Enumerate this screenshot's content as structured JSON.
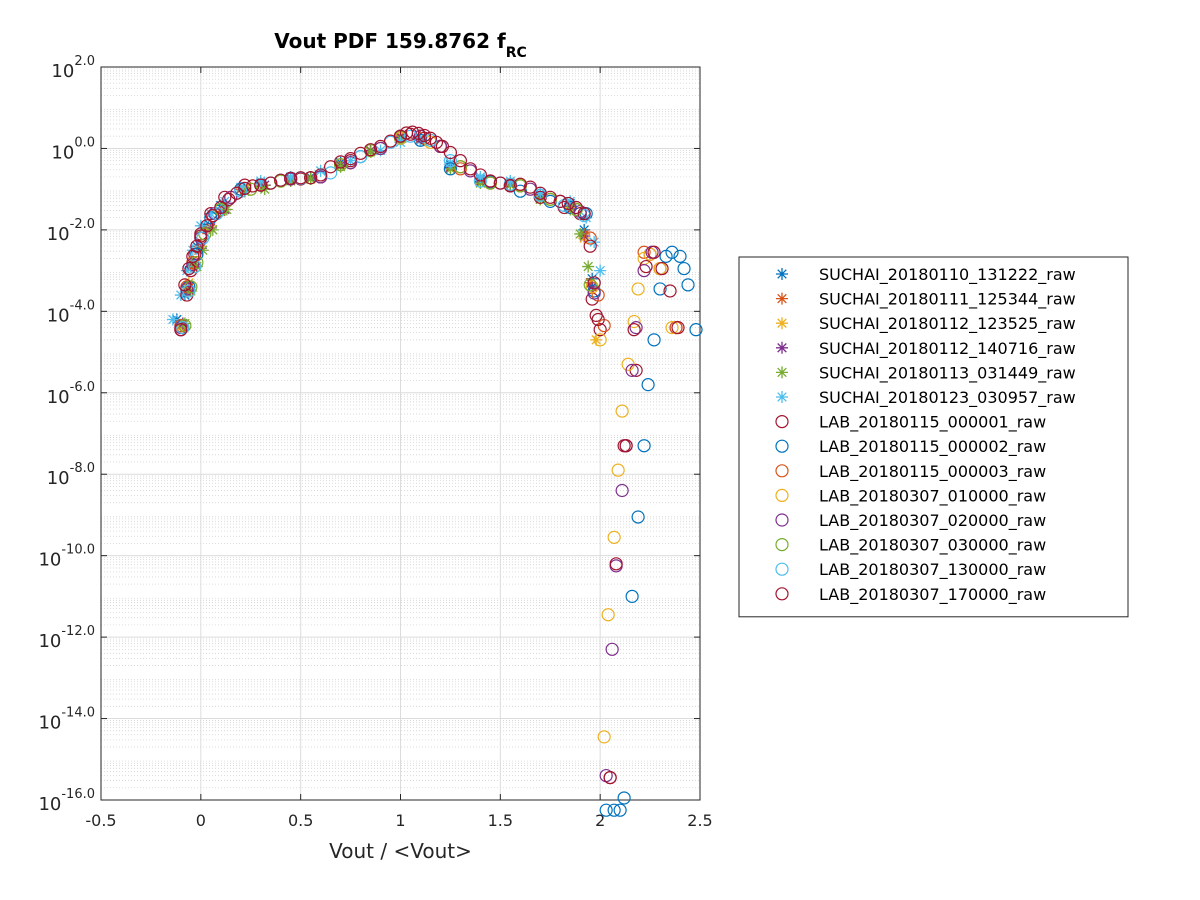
{
  "chart_data": {
    "type": "scatter",
    "title": "Vout PDF 159.8762 f",
    "title_subscript": "RC",
    "xlabel": "Vout / <Vout>",
    "ylabel": "",
    "xlim": [
      -0.5,
      2.5
    ],
    "ylim_log10": [
      -16,
      2
    ],
    "y_scale": "log",
    "grid": true,
    "minor_grid": true,
    "legend_placement": "outside-right",
    "x_ticks": [
      {
        "v": -0.5,
        "label": "-0.5"
      },
      {
        "v": 0,
        "label": "0"
      },
      {
        "v": 0.5,
        "label": "0.5"
      },
      {
        "v": 1,
        "label": "1"
      },
      {
        "v": 1.5,
        "label": "1.5"
      },
      {
        "v": 2,
        "label": "2"
      },
      {
        "v": 2.5,
        "label": "2.5"
      }
    ],
    "y_ticks": [
      {
        "exp": 2,
        "base": "10",
        "power": "2.0"
      },
      {
        "exp": 0,
        "base": "10",
        "power": "0.0"
      },
      {
        "exp": -2,
        "base": "10",
        "power": "-2.0"
      },
      {
        "exp": -4,
        "base": "10",
        "power": "-4.0"
      },
      {
        "exp": -6,
        "base": "10",
        "power": "-6.0"
      },
      {
        "exp": -8,
        "base": "10",
        "power": "-8.0"
      },
      {
        "exp": -10,
        "base": "10",
        "power": "-10.0"
      },
      {
        "exp": -12,
        "base": "10",
        "power": "-12.0"
      },
      {
        "exp": -14,
        "base": "10",
        "power": "-14.0"
      },
      {
        "exp": -16,
        "base": "10",
        "power": "-16.0"
      }
    ],
    "series": [
      {
        "name": "SUCHAI_20180110_131222_raw",
        "marker": "star",
        "color": "#0072BD",
        "x": [
          -0.12,
          -0.08,
          -0.05,
          -0.02,
          0.02,
          0.1,
          0.2,
          0.3,
          0.45,
          0.55,
          0.7,
          0.85,
          1.0,
          1.1,
          1.25,
          1.4,
          1.55,
          1.7,
          1.85,
          1.92,
          1.96
        ],
        "log10y": [
          -4.2,
          -3.6,
          -2.9,
          -2.4,
          -1.9,
          -1.4,
          -1.0,
          -0.85,
          -0.75,
          -0.7,
          -0.35,
          -0.05,
          0.25,
          0.2,
          -0.4,
          -0.75,
          -0.9,
          -1.15,
          -1.35,
          -2.0,
          -3.2
        ]
      },
      {
        "name": "SUCHAI_20180111_125344_raw",
        "marker": "star",
        "color": "#D95319",
        "x": [
          -0.1,
          -0.07,
          -0.04,
          -0.01,
          0.03,
          0.1,
          0.2,
          0.3,
          0.45,
          0.55,
          0.7,
          0.85,
          1.0,
          1.1,
          1.25,
          1.4,
          1.55,
          1.7,
          1.85,
          1.92,
          1.95
        ],
        "log10y": [
          -4.35,
          -3.4,
          -2.9,
          -2.5,
          -2.0,
          -1.55,
          -1.0,
          -0.9,
          -0.75,
          -0.75,
          -0.4,
          -0.05,
          0.3,
          0.25,
          -0.45,
          -0.8,
          -0.85,
          -1.2,
          -1.4,
          -2.1,
          -3.3
        ]
      },
      {
        "name": "SUCHAI_20180112_123525_raw",
        "marker": "star",
        "color": "#EDB120",
        "x": [
          -0.1,
          -0.06,
          -0.03,
          0.0,
          0.05,
          0.12,
          0.22,
          0.32,
          0.45,
          0.55,
          0.7,
          0.85,
          1.0,
          1.12,
          1.25,
          1.4,
          1.55,
          1.7,
          1.85,
          1.92,
          1.98
        ],
        "log10y": [
          -4.4,
          -3.3,
          -2.8,
          -2.4,
          -1.9,
          -1.5,
          -1.0,
          -0.9,
          -0.78,
          -0.72,
          -0.4,
          -0.08,
          0.25,
          0.2,
          -0.5,
          -0.85,
          -0.9,
          -1.25,
          -1.45,
          -2.2,
          -4.7
        ]
      },
      {
        "name": "SUCHAI_20180112_140716_raw",
        "marker": "star",
        "color": "#7E2F8E",
        "x": [
          -0.09,
          -0.06,
          -0.03,
          0.0,
          0.05,
          0.12,
          0.22,
          0.32,
          0.45,
          0.55,
          0.7,
          0.85,
          1.0,
          1.1,
          1.25,
          1.4,
          1.55,
          1.7,
          1.85,
          1.92,
          1.96
        ],
        "log10y": [
          -4.3,
          -3.4,
          -2.85,
          -2.45,
          -1.95,
          -1.5,
          -1.05,
          -0.9,
          -0.77,
          -0.73,
          -0.42,
          -0.06,
          0.27,
          0.22,
          -0.47,
          -0.82,
          -0.88,
          -1.22,
          -1.42,
          -2.15,
          -3.4
        ]
      },
      {
        "name": "SUCHAI_20180113_031449_raw",
        "marker": "star",
        "color": "#77AC30",
        "x": [
          -0.08,
          -0.05,
          -0.02,
          0.01,
          0.06,
          0.13,
          0.22,
          0.32,
          0.45,
          0.55,
          0.7,
          0.85,
          1.0,
          1.1,
          1.25,
          1.4,
          1.55,
          1.7,
          1.85,
          1.9,
          1.94
        ],
        "log10y": [
          -4.3,
          -3.5,
          -2.9,
          -2.5,
          -2.0,
          -1.5,
          -1.05,
          -1.0,
          -0.8,
          -0.75,
          -0.45,
          -0.08,
          0.24,
          0.2,
          -0.5,
          -0.85,
          -0.9,
          -1.25,
          -1.5,
          -2.1,
          -2.9
        ]
      },
      {
        "name": "SUCHAI_20180123_030957_raw",
        "marker": "star",
        "color": "#4DBEEE",
        "x": [
          -0.14,
          -0.1,
          -0.07,
          -0.04,
          0.0,
          0.05,
          0.12,
          0.2,
          0.3,
          0.45,
          0.6,
          0.75,
          0.9,
          1.0,
          1.1,
          1.25,
          1.4,
          1.55,
          1.7,
          1.85,
          1.93,
          1.97,
          2.0
        ],
        "log10y": [
          -4.2,
          -3.6,
          -3.0,
          -2.5,
          -1.9,
          -1.6,
          -1.3,
          -0.95,
          -0.8,
          -0.7,
          -0.55,
          -0.3,
          -0.05,
          0.15,
          0.2,
          -0.35,
          -0.7,
          -0.8,
          -1.1,
          -1.3,
          -1.7,
          -2.3,
          -3.0
        ]
      },
      {
        "name": "LAB_20180115_000001_raw",
        "marker": "circle",
        "color": "#A2142F",
        "x": [
          -0.1,
          -0.07,
          -0.05,
          -0.03,
          0.0,
          0.05,
          0.12,
          0.22,
          0.35,
          0.5,
          0.6,
          0.75,
          0.9,
          1.0,
          1.05,
          1.12,
          1.2,
          1.3,
          1.45,
          1.55,
          1.7,
          1.82,
          1.9,
          1.96,
          1.98,
          2.0,
          2.05,
          2.12,
          2.18,
          2.25,
          2.3,
          2.38
        ],
        "log10y": [
          -4.45,
          -3.6,
          -3.0,
          -2.6,
          -2.1,
          -1.6,
          -1.2,
          -0.9,
          -0.85,
          -0.75,
          -0.7,
          -0.3,
          0.0,
          0.3,
          0.35,
          0.25,
          0.05,
          -0.45,
          -0.8,
          -0.9,
          -1.2,
          -1.45,
          -1.6,
          -3.7,
          -4.1,
          -4.45,
          -15.45,
          -7.3,
          -5.45,
          -2.6,
          -2.95,
          -4.4
        ]
      },
      {
        "name": "LAB_20180115_000002_raw",
        "marker": "circle",
        "color": "#0072BD",
        "x": [
          -0.09,
          -0.06,
          -0.02,
          0.05,
          0.2,
          0.4,
          0.6,
          0.8,
          1.0,
          1.1,
          1.25,
          1.45,
          1.6,
          1.75,
          1.85,
          1.93,
          1.97,
          2.03,
          2.07,
          2.1,
          2.12,
          2.16,
          2.19,
          2.22,
          2.24,
          2.27,
          2.3,
          2.33,
          2.36,
          2.4,
          2.42,
          2.44,
          2.48
        ],
        "log10y": [
          -4.4,
          -3.4,
          -2.6,
          -1.7,
          -1.0,
          -0.78,
          -0.7,
          -0.2,
          0.25,
          0.2,
          -0.5,
          -0.82,
          -1.05,
          -1.3,
          -1.45,
          -1.6,
          -3.5,
          -16.25,
          -16.25,
          -16.25,
          -15.95,
          -11.0,
          -9.05,
          -7.3,
          -5.8,
          -4.7,
          -3.45,
          -2.65,
          -2.55,
          -2.65,
          -2.95,
          -3.35,
          -4.45
        ]
      },
      {
        "name": "LAB_20180115_000003_raw",
        "marker": "circle",
        "color": "#D95319",
        "x": [
          -0.1,
          -0.07,
          -0.04,
          0.0,
          0.06,
          0.15,
          0.3,
          0.45,
          0.6,
          0.75,
          0.9,
          1.0,
          1.1,
          1.2,
          1.3,
          1.45,
          1.6,
          1.75,
          1.88,
          1.95,
          1.99,
          2.02,
          2.22,
          2.3,
          2.38
        ],
        "log10y": [
          -4.35,
          -3.4,
          -2.8,
          -2.2,
          -1.65,
          -1.2,
          -0.9,
          -0.75,
          -0.7,
          -0.35,
          0.0,
          0.3,
          0.3,
          0.05,
          -0.5,
          -0.85,
          -0.9,
          -1.25,
          -1.5,
          -2.2,
          -3.6,
          -4.35,
          -2.55,
          -2.95,
          -4.4
        ]
      },
      {
        "name": "LAB_20180307_010000_raw",
        "marker": "circle",
        "color": "#EDB120",
        "x": [
          -0.09,
          -0.06,
          -0.03,
          0.02,
          0.1,
          0.25,
          0.4,
          0.55,
          0.7,
          0.85,
          1.0,
          1.15,
          1.3,
          1.45,
          1.6,
          1.75,
          1.88,
          1.96,
          2.0,
          2.02,
          2.04,
          2.07,
          2.09,
          2.11,
          2.14,
          2.17,
          2.19,
          2.22,
          2.25,
          2.3,
          2.36
        ],
        "log10y": [
          -4.4,
          -3.5,
          -2.9,
          -2.1,
          -1.5,
          -1.0,
          -0.8,
          -0.72,
          -0.4,
          -0.05,
          0.25,
          0.15,
          -0.45,
          -0.85,
          -0.9,
          -1.25,
          -1.5,
          -3.4,
          -4.7,
          -14.45,
          -11.45,
          -9.55,
          -7.9,
          -6.45,
          -5.3,
          -4.25,
          -3.45,
          -2.7,
          -2.6,
          -2.95,
          -4.4
        ]
      },
      {
        "name": "LAB_20180307_020000_raw",
        "marker": "circle",
        "color": "#7E2F8E",
        "x": [
          -0.1,
          -0.07,
          -0.04,
          0.0,
          0.07,
          0.15,
          0.3,
          0.45,
          0.6,
          0.75,
          0.9,
          1.0,
          1.1,
          1.2,
          1.35,
          1.5,
          1.65,
          1.8,
          1.9,
          1.97,
          2.03,
          2.06,
          2.08,
          2.11,
          2.13,
          2.16,
          2.18,
          2.22,
          2.26
        ],
        "log10y": [
          -4.4,
          -3.45,
          -2.85,
          -2.2,
          -1.6,
          -1.2,
          -0.9,
          -0.75,
          -0.7,
          -0.35,
          0.0,
          0.3,
          0.3,
          0.05,
          -0.55,
          -0.85,
          -1.0,
          -1.3,
          -1.55,
          -3.55,
          -15.4,
          -12.3,
          -10.25,
          -8.4,
          -7.3,
          -5.45,
          -4.4,
          -3.0,
          -2.55
        ]
      },
      {
        "name": "LAB_20180307_030000_raw",
        "marker": "circle",
        "color": "#77AC30",
        "x": [
          -0.08,
          -0.05,
          -0.02,
          0.02,
          0.1,
          0.25,
          0.4,
          0.55,
          0.7,
          0.85,
          1.0,
          1.15,
          1.3,
          1.45,
          1.6,
          1.75,
          1.88,
          1.95
        ],
        "log10y": [
          -4.35,
          -3.4,
          -2.8,
          -2.1,
          -1.5,
          -1.0,
          -0.8,
          -0.72,
          -0.4,
          -0.05,
          0.28,
          0.2,
          -0.45,
          -0.85,
          -0.92,
          -1.25,
          -1.5,
          -3.35
        ]
      },
      {
        "name": "LAB_20180307_130000_raw",
        "marker": "circle",
        "color": "#4DBEEE",
        "x": [
          -0.09,
          -0.06,
          -0.03,
          0.01,
          0.08,
          0.2,
          0.35,
          0.5,
          0.65,
          0.8,
          0.95,
          1.05,
          1.15,
          1.25,
          1.4,
          1.55,
          1.7,
          1.82,
          1.92,
          1.97
        ],
        "log10y": [
          -4.4,
          -3.5,
          -2.9,
          -2.2,
          -1.6,
          -1.05,
          -0.85,
          -0.73,
          -0.6,
          -0.2,
          0.15,
          0.3,
          0.2,
          -0.3,
          -0.8,
          -0.88,
          -1.15,
          -1.4,
          -1.65,
          -3.3
        ]
      },
      {
        "name": "LAB_20180307_170000_raw",
        "marker": "circle",
        "color": "#A2142F",
        "x": [
          -0.1,
          -0.08,
          -0.06,
          -0.04,
          -0.02,
          0.0,
          0.03,
          0.06,
          0.1,
          0.14,
          0.18,
          0.22,
          0.26,
          0.3,
          0.35,
          0.4,
          0.45,
          0.5,
          0.55,
          0.6,
          0.65,
          0.7,
          0.75,
          0.8,
          0.85,
          0.9,
          0.95,
          1.0,
          1.03,
          1.06,
          1.09,
          1.12,
          1.15,
          1.18,
          1.21,
          1.25,
          1.3,
          1.35,
          1.4,
          1.45,
          1.5,
          1.55,
          1.6,
          1.65,
          1.7,
          1.75,
          1.8,
          1.84,
          1.88,
          1.92,
          1.95,
          1.97,
          1.99,
          2.05,
          2.08,
          2.13,
          2.17,
          2.23,
          2.27,
          2.31,
          2.35,
          2.39
        ],
        "log10y": [
          -4.45,
          -3.35,
          -2.95,
          -2.65,
          -2.4,
          -2.15,
          -1.9,
          -1.65,
          -1.45,
          -1.25,
          -1.1,
          -0.98,
          -0.92,
          -0.9,
          -0.85,
          -0.78,
          -0.73,
          -0.72,
          -0.72,
          -0.65,
          -0.45,
          -0.33,
          -0.25,
          -0.12,
          -0.03,
          0.05,
          0.18,
          0.3,
          0.38,
          0.4,
          0.37,
          0.32,
          0.25,
          0.15,
          0.05,
          -0.1,
          -0.3,
          -0.5,
          -0.65,
          -0.8,
          -0.85,
          -0.92,
          -0.88,
          -0.95,
          -1.1,
          -1.2,
          -1.3,
          -1.35,
          -1.45,
          -1.6,
          -2.4,
          -3.3,
          -4.2,
          -15.45,
          -10.2,
          -7.3,
          -4.45,
          -2.9,
          -2.55,
          -2.95,
          -3.5,
          -4.4
        ]
      }
    ]
  }
}
